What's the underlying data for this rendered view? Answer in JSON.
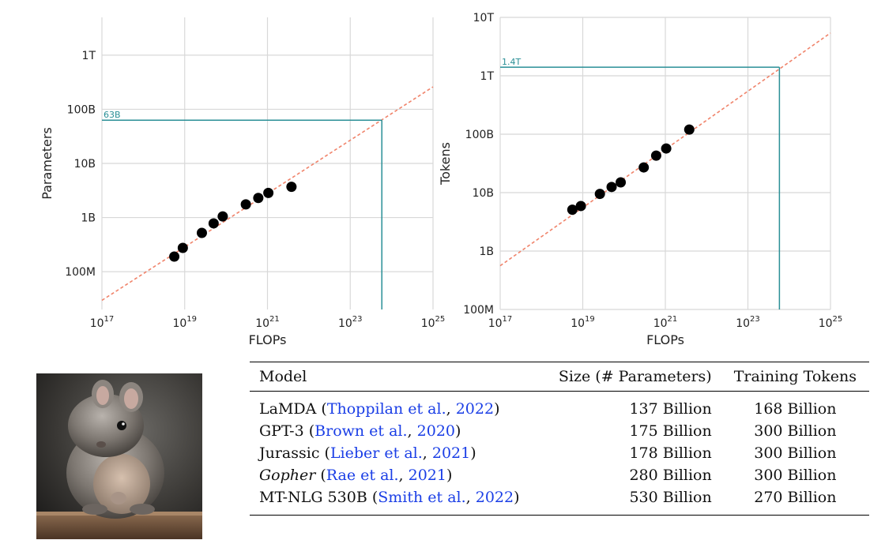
{
  "chart_data": [
    {
      "type": "scatter",
      "xlabel": "FLOPs",
      "ylabel": "Parameters",
      "x_scale": "log",
      "y_scale": "log",
      "xlim": [
        1e+17,
        1e+25
      ],
      "ylim": [
        20000000.0,
        5000000000000.0
      ],
      "x_ticks": [
        1e+17,
        1e+19,
        1e+21,
        1e+23,
        1e+25
      ],
      "x_tick_labels": [
        [
          "10",
          "17"
        ],
        [
          "10",
          "19"
        ],
        [
          "10",
          "21"
        ],
        [
          "10",
          "23"
        ],
        [
          "10",
          "25"
        ]
      ],
      "y_ticks": [
        100000000.0,
        1000000000.0,
        10000000000.0,
        100000000000.0,
        1000000000000.0
      ],
      "y_tick_labels": [
        "100M",
        "1B",
        "10B",
        "100B",
        "1T"
      ],
      "grid": true,
      "points": [
        {
          "x": 5.6e+18,
          "y": 190000000.0
        },
        {
          "x": 9e+18,
          "y": 275000000.0
        },
        {
          "x": 2.6e+19,
          "y": 520000000.0
        },
        {
          "x": 5e+19,
          "y": 780000000.0
        },
        {
          "x": 8.3e+19,
          "y": 1050000000.0
        },
        {
          "x": 3e+20,
          "y": 1750000000.0
        },
        {
          "x": 6e+20,
          "y": 2300000000.0
        },
        {
          "x": 1.05e+21,
          "y": 2850000000.0
        },
        {
          "x": 3.8e+21,
          "y": 3700000000.0
        }
      ],
      "fit_line": {
        "x": [
          1e+17,
          1e+25
        ],
        "y": [
          29500000.0,
          260000000000.0
        ],
        "color": "#f0836a"
      },
      "reference": {
        "x": 5.8e+23,
        "y": 63000000000.0,
        "label": "63B",
        "color": "#2a8f96"
      }
    },
    {
      "type": "scatter",
      "xlabel": "FLOPs",
      "ylabel": "Tokens",
      "x_scale": "log",
      "y_scale": "log",
      "xlim": [
        1e+17,
        1e+25
      ],
      "ylim": [
        100000000.0,
        10000000000000.0
      ],
      "x_ticks": [
        1e+17,
        1e+19,
        1e+21,
        1e+23,
        1e+25
      ],
      "x_tick_labels": [
        [
          "10",
          "17"
        ],
        [
          "10",
          "19"
        ],
        [
          "10",
          "21"
        ],
        [
          "10",
          "23"
        ],
        [
          "10",
          "25"
        ]
      ],
      "y_ticks": [
        100000000.0,
        1000000000.0,
        10000000000.0,
        100000000000.0,
        1000000000000.0,
        10000000000000.0
      ],
      "y_tick_labels": [
        "100M",
        "1B",
        "10B",
        "100B",
        "1T",
        "10T"
      ],
      "grid": true,
      "points": [
        {
          "x": 5.6e+18,
          "y": 5100000000.0
        },
        {
          "x": 9e+18,
          "y": 5900000000.0
        },
        {
          "x": 2.6e+19,
          "y": 9500000000.0
        },
        {
          "x": 5e+19,
          "y": 12500000000.0
        },
        {
          "x": 8.3e+19,
          "y": 15000000000.0
        },
        {
          "x": 3e+20,
          "y": 27000000000.0
        },
        {
          "x": 6e+20,
          "y": 43000000000.0
        },
        {
          "x": 1.05e+21,
          "y": 57000000000.0
        },
        {
          "x": 3.8e+21,
          "y": 120000000000.0
        }
      ],
      "fit_line": {
        "x": [
          1e+17,
          1e+25
        ],
        "y": [
          560000000.0,
          5400000000000.0
        ],
        "color": "#f0836a"
      },
      "reference": {
        "x": 5.8e+23,
        "y": 1400000000000.0,
        "label": "1.4T",
        "color": "#2a8f96"
      }
    }
  ],
  "table": {
    "headers": {
      "model": "Model",
      "size": "Size (# Parameters)",
      "tokens": "Training Tokens"
    },
    "rows": [
      {
        "model": "LaMDA",
        "cite_open": " (",
        "cite_text": "Thoppilan et al.",
        "cite_sep": ", ",
        "cite_year": "2022",
        "cite_close": ")",
        "italic": false,
        "size": "137 Billion",
        "tokens": "168 Billion"
      },
      {
        "model": "GPT-3",
        "cite_open": " (",
        "cite_text": "Brown et al.",
        "cite_sep": ", ",
        "cite_year": "2020",
        "cite_close": ")",
        "italic": false,
        "size": "175 Billion",
        "tokens": "300 Billion"
      },
      {
        "model": "Jurassic",
        "cite_open": " (",
        "cite_text": "Lieber et al.",
        "cite_sep": ", ",
        "cite_year": "2021",
        "cite_close": ")",
        "italic": false,
        "size": "178 Billion",
        "tokens": "300 Billion"
      },
      {
        "model": "Gopher",
        "cite_open": " (",
        "cite_text": "Rae et al.",
        "cite_sep": ", ",
        "cite_year": "2021",
        "cite_close": ")",
        "italic": true,
        "size": "280 Billion",
        "tokens": "300 Billion"
      },
      {
        "model": "MT-NLG 530B",
        "cite_open": " (",
        "cite_text": "Smith et al.",
        "cite_sep": ", ",
        "cite_year": "2022",
        "cite_close": ")",
        "italic": false,
        "size": "530 Billion",
        "tokens": "270 Billion"
      }
    ]
  },
  "colors": {
    "link": "#1a3ee6",
    "reference": "#2a8f96",
    "fit": "#f0836a",
    "grid": "#d8d8d8",
    "point": "#000000"
  },
  "image": {
    "subject": "chinchilla-illustration"
  }
}
